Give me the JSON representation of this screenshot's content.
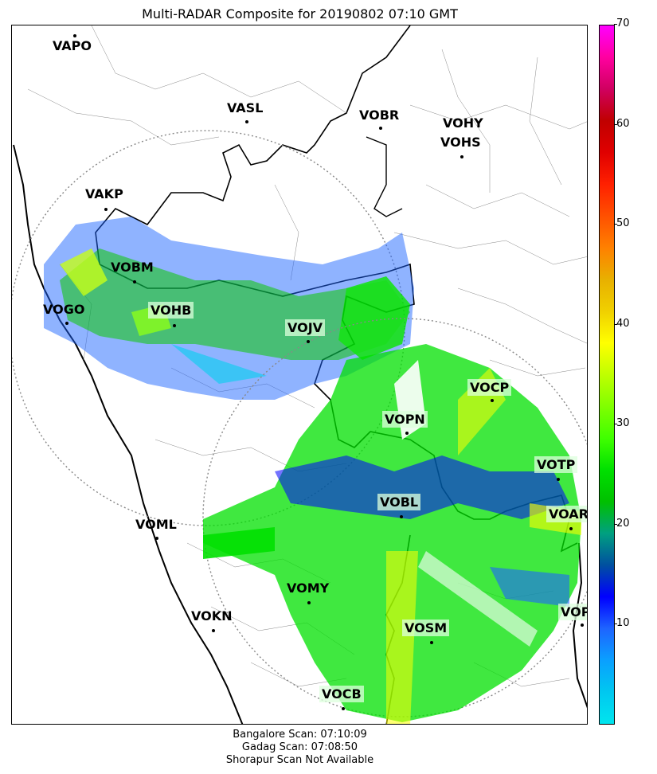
{
  "title": "Multi-RADAR Composite for 20190802 07:10 GMT",
  "stations": [
    {
      "id": "VAPO",
      "highlight": false
    },
    {
      "id": "VASL",
      "highlight": false
    },
    {
      "id": "VOBR",
      "highlight": false
    },
    {
      "id": "VOHY",
      "highlight": false
    },
    {
      "id": "VOHS",
      "highlight": false
    },
    {
      "id": "VAKP",
      "highlight": false
    },
    {
      "id": "VOBM",
      "highlight": false
    },
    {
      "id": "VOGO",
      "highlight": false
    },
    {
      "id": "VOHB",
      "highlight": true
    },
    {
      "id": "VOJV",
      "highlight": true
    },
    {
      "id": "VOCP",
      "highlight": true
    },
    {
      "id": "VOPN",
      "highlight": true
    },
    {
      "id": "VOTP",
      "highlight": true
    },
    {
      "id": "VOBL",
      "highlight": true
    },
    {
      "id": "VOAR",
      "highlight": true
    },
    {
      "id": "VOML",
      "highlight": false
    },
    {
      "id": "VOMY",
      "highlight": false
    },
    {
      "id": "VOKN",
      "highlight": false
    },
    {
      "id": "VOPC",
      "highlight": true
    },
    {
      "id": "VOSM",
      "highlight": true
    },
    {
      "id": "VOCB",
      "highlight": true
    }
  ],
  "colorbar": {
    "ticks": [
      "70",
      "60",
      "50",
      "40",
      "30",
      "20",
      "10"
    ],
    "colors": [
      "#00e5ee",
      "#00c8f0",
      "#0aa0ff",
      "#1e64ff",
      "#0000ff",
      "#0050a0",
      "#00a080",
      "#00c000",
      "#00e000",
      "#40ff00",
      "#80ff00",
      "#c0ff00",
      "#ffff00",
      "#f0d000",
      "#e8b000",
      "#ff8000",
      "#ff5000",
      "#ff2000",
      "#e00000",
      "#c00000",
      "#d00060",
      "#ff00a0",
      "#ff00ff"
    ]
  },
  "footer": {
    "line1": "Bangalore Scan: 07:10:09",
    "line2": "Gadag Scan: 07:08:50",
    "line3": "Shorapur Scan Not Available"
  }
}
